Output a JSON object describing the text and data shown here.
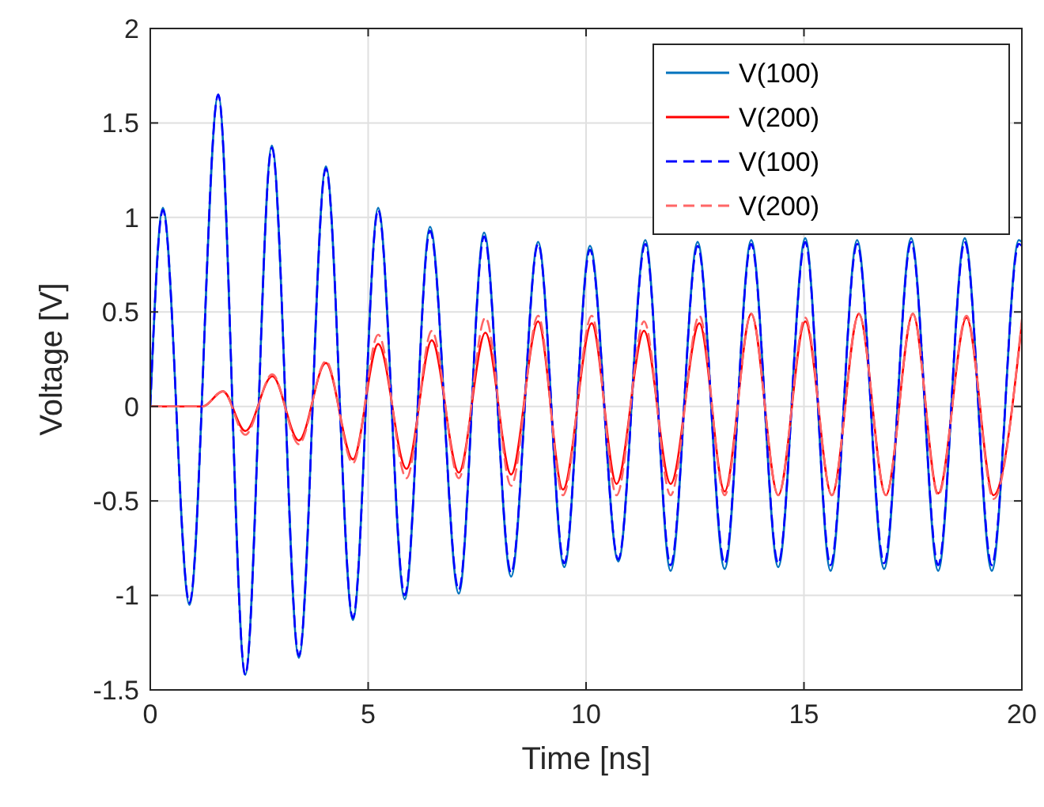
{
  "chart_data": {
    "type": "line",
    "xlabel": "Time [ns]",
    "ylabel": "Voltage [V]",
    "xlim": [
      0,
      20
    ],
    "xticks": [
      0,
      5,
      10,
      15,
      20
    ],
    "ylim": [
      -1.5,
      2
    ],
    "yticks": [
      -1.5,
      -1,
      -0.5,
      0,
      0.5,
      1,
      1.5,
      2
    ],
    "grid": true,
    "legend": "top right",
    "marker": "none",
    "series": [
      {
        "name": "V(100)",
        "color": "#0072bd",
        "line_style": "solid",
        "x": [
          0,
          0.29,
          0.9,
          1.56,
          2.18,
          2.79,
          3.41,
          4.03,
          4.65,
          5.23,
          5.84,
          6.42,
          7.08,
          7.66,
          8.28,
          8.9,
          9.5,
          10.09,
          10.74,
          11.36,
          11.94,
          12.56,
          13.18,
          13.79,
          14.41,
          15.03,
          15.61,
          16.22,
          16.84,
          17.46,
          18.08,
          18.69,
          19.31,
          19.93,
          20
        ],
        "values": [
          0,
          1.05,
          -1.05,
          1.65,
          -1.42,
          1.38,
          -1.33,
          1.27,
          -1.13,
          1.05,
          -1.02,
          0.95,
          -0.99,
          0.92,
          -0.9,
          0.87,
          -0.85,
          0.85,
          -0.82,
          0.88,
          -0.87,
          0.87,
          -0.86,
          0.88,
          -0.85,
          0.89,
          -0.87,
          0.88,
          -0.86,
          0.89,
          -0.87,
          0.89,
          -0.87,
          0.88,
          0.87
        ]
      },
      {
        "name": "V(200)",
        "color": "#ff0000",
        "line_style": "solid",
        "x": [
          0,
          1.2,
          1.67,
          2.18,
          2.8,
          3.41,
          4.03,
          4.65,
          5.23,
          5.88,
          6.46,
          7.08,
          7.69,
          8.28,
          8.9,
          9.47,
          10.13,
          10.7,
          11.33,
          11.94,
          12.6,
          13.18,
          13.79,
          14.41,
          15.03,
          15.64,
          16.26,
          16.88,
          17.5,
          18.08,
          18.73,
          19.35,
          20
        ],
        "values": [
          0,
          0,
          0.08,
          -0.13,
          0.16,
          -0.18,
          0.23,
          -0.28,
          0.33,
          -0.33,
          0.35,
          -0.35,
          0.39,
          -0.36,
          0.45,
          -0.44,
          0.44,
          -0.41,
          0.4,
          -0.41,
          0.44,
          -0.45,
          0.49,
          -0.47,
          0.45,
          -0.47,
          0.49,
          -0.47,
          0.49,
          -0.46,
          0.47,
          -0.47,
          0.44
        ]
      },
      {
        "name": "V(100)",
        "color": "#0000ff",
        "line_style": "dashed",
        "x": [
          0,
          0.29,
          0.9,
          1.56,
          2.18,
          2.79,
          3.41,
          4.03,
          4.65,
          5.23,
          5.84,
          6.42,
          7.08,
          7.66,
          8.28,
          8.9,
          9.5,
          10.09,
          10.74,
          11.36,
          11.94,
          12.56,
          13.18,
          13.79,
          14.41,
          15.03,
          15.61,
          16.22,
          16.84,
          17.46,
          18.08,
          18.69,
          19.31,
          19.93,
          20
        ],
        "values": [
          0,
          1.04,
          -1.04,
          1.65,
          -1.42,
          1.37,
          -1.32,
          1.26,
          -1.12,
          1.04,
          -1.0,
          0.93,
          -0.97,
          0.9,
          -0.88,
          0.86,
          -0.83,
          0.83,
          -0.81,
          0.86,
          -0.84,
          0.85,
          -0.83,
          0.86,
          -0.83,
          0.87,
          -0.84,
          0.86,
          -0.83,
          0.87,
          -0.84,
          0.87,
          -0.84,
          0.86,
          0.85
        ]
      },
      {
        "name": "V(200)",
        "color": "#ff6666",
        "line_style": "dashed",
        "x": [
          0,
          1.2,
          1.67,
          2.18,
          2.8,
          3.41,
          4.03,
          4.65,
          5.23,
          5.88,
          6.46,
          7.08,
          7.69,
          8.28,
          8.9,
          9.47,
          10.13,
          10.7,
          11.33,
          11.94,
          12.6,
          13.18,
          13.79,
          14.41,
          15.03,
          15.64,
          16.26,
          16.88,
          17.5,
          18.08,
          18.73,
          19.35,
          20
        ],
        "values": [
          0,
          0,
          0.08,
          -0.15,
          0.17,
          -0.2,
          0.24,
          -0.3,
          0.38,
          -0.38,
          0.4,
          -0.38,
          0.47,
          -0.42,
          0.48,
          -0.47,
          0.48,
          -0.47,
          0.45,
          -0.47,
          0.48,
          -0.47,
          0.49,
          -0.47,
          0.47,
          -0.47,
          0.49,
          -0.47,
          0.49,
          -0.47,
          0.48,
          -0.49,
          0.46
        ]
      }
    ]
  }
}
